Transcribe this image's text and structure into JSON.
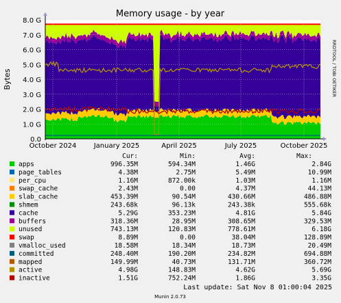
{
  "chart_data": {
    "type": "area",
    "title": "Memory usage - by year",
    "ylabel": "Bytes",
    "xlabel": "",
    "ylim": [
      0,
      8.0
    ],
    "y_unit": "G",
    "grid": true,
    "yticks": [
      "0.0",
      "1.0 G",
      "2.0 G",
      "3.0 G",
      "4.0 G",
      "5.0 G",
      "6.0 G",
      "7.0 G",
      "8.0 G"
    ],
    "xticks": [
      "October 2024",
      "January 2025",
      "April 2025",
      "July 2025",
      "October 2025"
    ],
    "series_approx_levels": {
      "apps": 1.5,
      "page_tables": 0.005,
      "per_cpu": 0.001,
      "swap_cache": 0.004,
      "slab_cache": 0.43,
      "shmem": 0.0002,
      "cache": 4.81,
      "buffers": 0.31,
      "unused": 0.78,
      "swap": 0.04,
      "active": 4.62,
      "inactive": 1.86,
      "committed": 0.23
    },
    "legend_headers": {
      "cur": "Cur:",
      "min": "Min:",
      "avg": "Avg:",
      "max": "Max:"
    },
    "legend": [
      {
        "name": "apps",
        "color": "#00cc00",
        "cur": "996.35M",
        "min": "594.34M",
        "avg": "1.46G",
        "max": "2.84G"
      },
      {
        "name": "page_tables",
        "color": "#0066b3",
        "cur": "4.38M",
        "min": "2.75M",
        "avg": "5.49M",
        "max": "10.99M"
      },
      {
        "name": "per_cpu",
        "color": "#ffe680",
        "cur": "1.16M",
        "min": "872.00k",
        "avg": "1.03M",
        "max": "1.16M"
      },
      {
        "name": "swap_cache",
        "color": "#ff8000",
        "cur": "2.43M",
        "min": "0.00",
        "avg": "4.37M",
        "max": "44.13M"
      },
      {
        "name": "slab_cache",
        "color": "#ffcc00",
        "cur": "453.39M",
        "min": "90.54M",
        "avg": "430.66M",
        "max": "486.88M"
      },
      {
        "name": "shmem",
        "color": "#008f00",
        "cur": "243.68k",
        "min": "96.13k",
        "avg": "243.38k",
        "max": "555.68k"
      },
      {
        "name": "cache",
        "color": "#330099",
        "cur": "5.29G",
        "min": "353.23M",
        "avg": "4.81G",
        "max": "5.84G"
      },
      {
        "name": "buffers",
        "color": "#990099",
        "cur": "318.36M",
        "min": "28.95M",
        "avg": "308.65M",
        "max": "329.53M"
      },
      {
        "name": "unused",
        "color": "#ccff00",
        "cur": "743.13M",
        "min": "120.83M",
        "avg": "778.61M",
        "max": "6.18G"
      },
      {
        "name": "swap",
        "color": "#ff0000",
        "cur": "8.89M",
        "min": "0.00",
        "avg": "38.04M",
        "max": "128.89M"
      },
      {
        "name": "vmalloc_used",
        "color": "#808080",
        "cur": "18.58M",
        "min": "18.34M",
        "avg": "18.73M",
        "max": "20.49M"
      },
      {
        "name": "committed",
        "color": "#005b7f",
        "cur": "248.40M",
        "min": "190.20M",
        "avg": "234.82M",
        "max": "694.88M"
      },
      {
        "name": "mapped",
        "color": "#b35900",
        "cur": "149.99M",
        "min": "40.73M",
        "avg": "131.71M",
        "max": "360.72M"
      },
      {
        "name": "active",
        "color": "#b38f00",
        "cur": "4.98G",
        "min": "148.83M",
        "avg": "4.62G",
        "max": "5.69G"
      },
      {
        "name": "inactive",
        "color": "#b30000",
        "cur": "1.51G",
        "min": "752.24M",
        "avg": "1.86G",
        "max": "3.35G"
      }
    ]
  },
  "footer": {
    "last_update": "Last update: Sat Nov  8 01:00:04 2025",
    "munin_version": "Munin 2.0.73"
  },
  "side_label": "RRDTOOL / TOBI OETIKER",
  "colors": {
    "background": "#f0f0f0",
    "plot_bg": "#ffffff",
    "grid": "#e0c8c8",
    "axis": "#000000"
  }
}
